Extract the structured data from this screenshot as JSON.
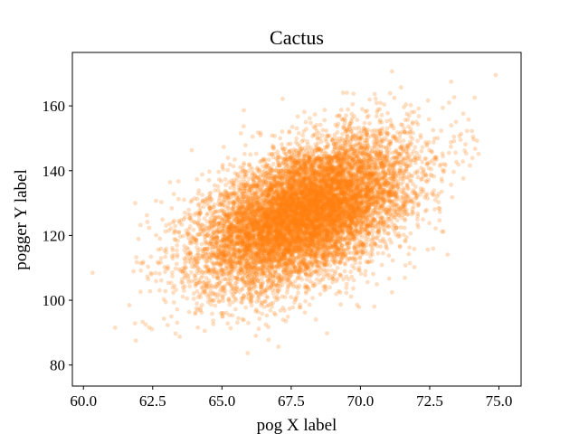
{
  "chart_data": {
    "type": "scatter",
    "title": "Cactus",
    "xlabel": "pog X label",
    "ylabel": "pogger Y label",
    "xlim": [
      59.6,
      75.8
    ],
    "ylim": [
      73.5,
      176.5
    ],
    "xticks": [
      60.0,
      62.5,
      65.0,
      67.5,
      70.0,
      72.5,
      75.0
    ],
    "xtick_labels": [
      "60.0",
      "62.5",
      "65.0",
      "67.5",
      "70.0",
      "72.5",
      "75.0"
    ],
    "yticks": [
      80,
      100,
      120,
      140,
      160
    ],
    "ytick_labels": [
      "80",
      "100",
      "120",
      "140",
      "160"
    ],
    "grid": false,
    "legend": "none",
    "series": [
      {
        "color": "#ff7f0e",
        "alpha": 0.25,
        "n_points": 10000,
        "distribution": "bivariate-normal",
        "mean": [
          68.0,
          127.0
        ],
        "std": [
          1.9,
          11.5
        ],
        "correlation": 0.5,
        "x_range": [
          60.3,
          75.2
        ],
        "y_range": [
          78,
          171
        ]
      }
    ]
  }
}
